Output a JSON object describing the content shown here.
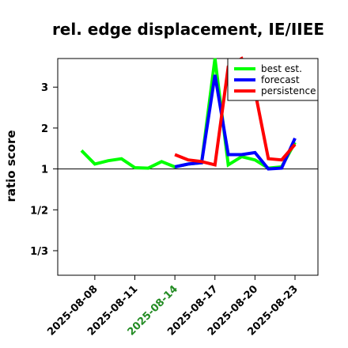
{
  "chart_data": {
    "type": "line",
    "title": "rel. edge displacement, IE/IIEE",
    "xlabel": "",
    "ylabel": "ratio score",
    "x": [
      "2025-08-07",
      "2025-08-08",
      "2025-08-09",
      "2025-08-10",
      "2025-08-11",
      "2025-08-12",
      "2025-08-13",
      "2025-08-14",
      "2025-08-15",
      "2025-08-16",
      "2025-08-17",
      "2025-08-18",
      "2025-08-19",
      "2025-08-20",
      "2025-08-21",
      "2025-08-22",
      "2025-08-23"
    ],
    "x_tick_labels": [
      "2025-08-08",
      "2025-08-11",
      "2025-08-14",
      "2025-08-17",
      "2025-08-20",
      "2025-08-23"
    ],
    "x_tick_colors": [
      "#000000",
      "#000000",
      "#228b22",
      "#000000",
      "#000000",
      "#000000"
    ],
    "y_scale": "reciprocal",
    "y_tick_labels": [
      "3",
      "2",
      "1",
      "1/2",
      "1/3"
    ],
    "y_tick_values": [
      3,
      2,
      1,
      -2,
      -3
    ],
    "ylim": [
      -3.6,
      3.7
    ],
    "reference_line": 1,
    "legend_position": "top-right",
    "series": [
      {
        "name": "best est.",
        "color": "#00ff00",
        "values": [
          1.45,
          1.12,
          1.2,
          1.25,
          1.03,
          1.02,
          1.18,
          1.05,
          1.12,
          1.15,
          3.7,
          1.1,
          1.3,
          1.22,
          1.02,
          1.05,
          1.65
        ]
      },
      {
        "name": "forecast",
        "color": "#0000ff",
        "values": [
          null,
          null,
          null,
          null,
          null,
          null,
          null,
          1.05,
          1.12,
          1.15,
          3.3,
          1.35,
          1.35,
          1.4,
          1.0,
          1.02,
          1.75
        ]
      },
      {
        "name": "persistence",
        "color": "#ff0000",
        "values": [
          null,
          null,
          null,
          null,
          null,
          null,
          null,
          1.35,
          1.22,
          1.18,
          1.1,
          3.5,
          3.7,
          2.9,
          1.25,
          1.22,
          1.6
        ]
      }
    ]
  }
}
